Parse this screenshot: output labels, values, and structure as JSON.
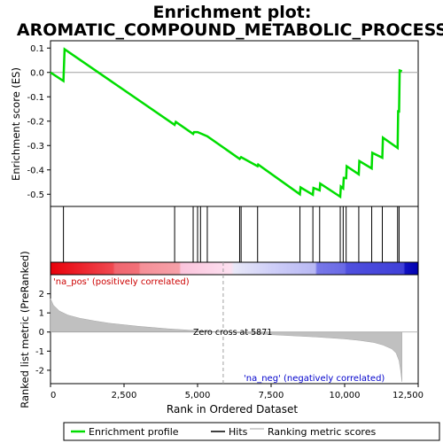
{
  "chart_data": {
    "type": "line",
    "title_line1": "Enrichment plot:",
    "title_line2": "AROMATIC_COMPOUND_METABOLIC_PROCESS",
    "xlabel": "Rank in Ordered Dataset",
    "ylabel_top": "Enrichment score (ES)",
    "ylabel_bottom": "Ranked list metric (PreRanked)",
    "xlim": [
      0,
      12500
    ],
    "x_ticks": [
      0,
      2500,
      5000,
      7500,
      10000,
      12500
    ],
    "x_tick_labels": [
      "0",
      "2,500",
      "5,000",
      "7,500",
      "10,000",
      "12,500"
    ],
    "es_ylim": [
      -0.55,
      0.13
    ],
    "es_ticks": [
      0.1,
      0.0,
      -0.1,
      -0.2,
      -0.3,
      -0.4,
      -0.5
    ],
    "es_tick_labels": [
      "0.1",
      "0.0",
      "-0.1",
      "-0.2",
      "-0.3",
      "-0.4",
      "-0.5"
    ],
    "metric_ylim": [
      -2.7,
      3.0
    ],
    "metric_ticks": [
      2,
      1,
      0,
      -1,
      -2
    ],
    "metric_tick_labels": [
      "2",
      "1",
      "0",
      "-1",
      "-2"
    ],
    "enrichment_profile": {
      "x": [
        0,
        440,
        480,
        4220,
        4260,
        4850,
        4880,
        5000,
        5100,
        5330,
        6430,
        6480,
        7040,
        7060,
        8480,
        8500,
        8920,
        8940,
        9150,
        9170,
        9850,
        9870,
        9950,
        9970,
        10050,
        10070,
        10480,
        10500,
        10920,
        10940,
        11280,
        11300,
        11800,
        11820,
        11850,
        11870,
        11950
      ],
      "y": [
        0.0,
        -0.035,
        0.095,
        -0.215,
        -0.203,
        -0.252,
        -0.245,
        -0.245,
        -0.25,
        -0.262,
        -0.355,
        -0.348,
        -0.385,
        -0.378,
        -0.5,
        -0.472,
        -0.502,
        -0.474,
        -0.484,
        -0.456,
        -0.51,
        -0.468,
        -0.476,
        -0.433,
        -0.434,
        -0.385,
        -0.418,
        -0.364,
        -0.394,
        -0.33,
        -0.35,
        -0.268,
        -0.31,
        -0.155,
        -0.165,
        0.008,
        0.005
      ]
    },
    "hits": [
      440,
      4220,
      4850,
      5000,
      5100,
      5330,
      6430,
      6480,
      7040,
      8480,
      8920,
      9150,
      9850,
      9950,
      10050,
      10480,
      10920,
      11280,
      11800,
      11850
    ],
    "zero_cross_label": "Zero cross at 5871",
    "zero_cross_x": 5871,
    "pos_label": "'na_pos' (positively correlated)",
    "neg_label": "'na_neg' (negatively correlated)",
    "metric_curve": {
      "x": [
        0,
        100,
        300,
        600,
        1000,
        1500,
        2000,
        3000,
        4000,
        5000,
        5871,
        7000,
        8000,
        9000,
        10000,
        10500,
        11000,
        11300,
        11600,
        11750,
        11850,
        11900,
        11950
      ],
      "y": [
        1.75,
        1.4,
        1.1,
        0.88,
        0.72,
        0.58,
        0.46,
        0.3,
        0.17,
        0.07,
        0.0,
        -0.1,
        -0.18,
        -0.26,
        -0.36,
        -0.44,
        -0.55,
        -0.68,
        -0.88,
        -1.1,
        -1.5,
        -2.0,
        -2.6
      ]
    },
    "legend": [
      "Enrichment profile",
      "Hits",
      "Ranking metric scores"
    ],
    "colors": {
      "profile": "#00dd00",
      "hits": "#000000",
      "metric_fill": "#c0c0c0",
      "zero_line": "#a0a0a0",
      "pos_text": "#cc0000",
      "neg_text": "#0000cc"
    }
  }
}
